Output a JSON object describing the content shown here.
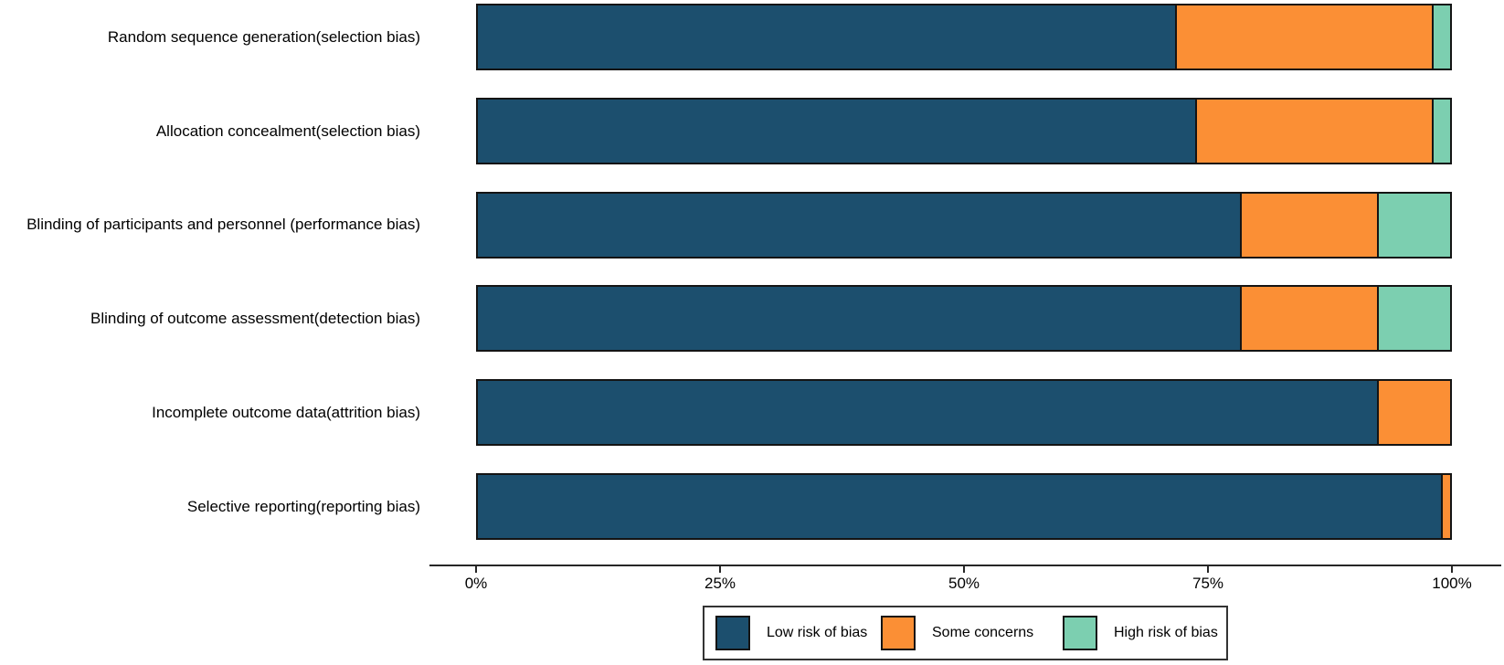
{
  "chart_data": {
    "type": "bar",
    "orientation": "horizontal",
    "stacked": true,
    "unit": "percent",
    "title": "",
    "xlabel": "",
    "ylabel": "",
    "grid": false,
    "categories": [
      "Random sequence generation(selection bias)",
      "Allocation concealment(selection bias)",
      "Blinding of participants and personnel (performance bias)",
      "Blinding of outcome assessment(detection bias)",
      "Incomplete outcome data(attrition bias)",
      "Selective reporting(reporting bias)"
    ],
    "series": [
      {
        "name": "Low risk of bias",
        "color": "#1C4F6E",
        "values": [
          71.7,
          73.8,
          78.4,
          78.4,
          92.5,
          99.1
        ]
      },
      {
        "name": "Some concerns",
        "color": "#FB8F35",
        "values": [
          26.4,
          24.3,
          14.1,
          14.1,
          7.5,
          0.9
        ]
      },
      {
        "name": "High risk of bias",
        "color": "#7CCFB0",
        "values": [
          1.9,
          1.9,
          7.5,
          7.5,
          0,
          0
        ]
      }
    ],
    "x_axis": {
      "range": [
        0,
        100
      ],
      "tick_values": [
        0,
        25,
        50,
        75,
        100
      ],
      "tick_labels": [
        "0%",
        "25%",
        "50%",
        "75%",
        "100%"
      ]
    },
    "legend": {
      "position": "bottom",
      "items": [
        "Low risk of bias",
        "Some concerns",
        "High risk of bias"
      ]
    },
    "colors": {
      "low_risk": "#1C4F6E",
      "some_concerns": "#FB8F35",
      "high_risk": "#7CCFB0",
      "outline": "#141414",
      "axis": "#262626",
      "background": "#FFFFFF"
    }
  }
}
